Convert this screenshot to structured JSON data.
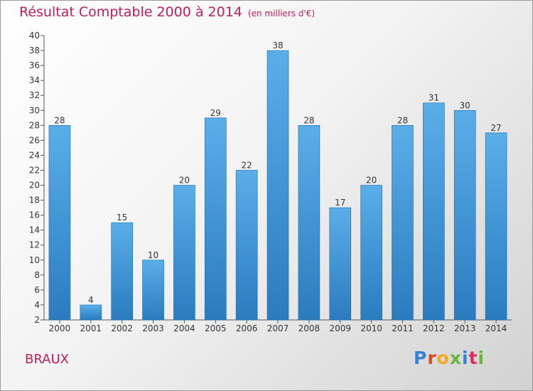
{
  "header": {
    "title": "Résultat Comptable 2000 à 2014",
    "subtitle": "(en milliers d'€)"
  },
  "footer": {
    "location": "BRAUX",
    "logo_text": "Proxiti"
  },
  "colors": {
    "title": "#c0205a",
    "bar_light": "#5aaee8",
    "bar_dark": "#2a7cbf"
  },
  "chart_data": {
    "type": "bar",
    "title": "Résultat Comptable 2000 à 2014",
    "subtitle": "(en milliers d'€)",
    "categories": [
      "2000",
      "2001",
      "2002",
      "2003",
      "2004",
      "2005",
      "2006",
      "2007",
      "2008",
      "2009",
      "2010",
      "2011",
      "2012",
      "2013",
      "2014"
    ],
    "values": [
      28,
      4,
      15,
      10,
      20,
      29,
      22,
      38,
      28,
      17,
      20,
      28,
      31,
      30,
      27
    ],
    "ylim": [
      2,
      40
    ],
    "yticks": [
      2,
      4,
      6,
      8,
      10,
      12,
      14,
      16,
      18,
      20,
      22,
      24,
      26,
      28,
      30,
      32,
      34,
      36,
      38,
      40
    ],
    "xlabel": "",
    "ylabel": "",
    "grid": false
  }
}
